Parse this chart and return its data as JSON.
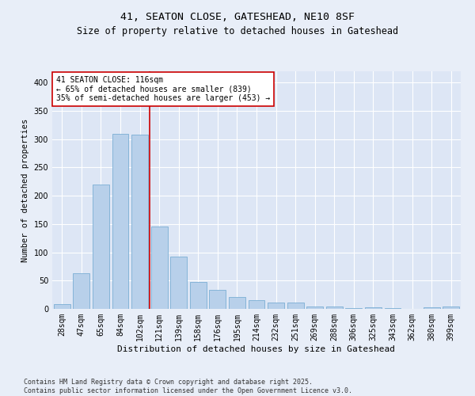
{
  "title1": "41, SEATON CLOSE, GATESHEAD, NE10 8SF",
  "title2": "Size of property relative to detached houses in Gateshead",
  "xlabel": "Distribution of detached houses by size in Gateshead",
  "ylabel": "Number of detached properties",
  "categories": [
    "28sqm",
    "47sqm",
    "65sqm",
    "84sqm",
    "102sqm",
    "121sqm",
    "139sqm",
    "158sqm",
    "176sqm",
    "195sqm",
    "214sqm",
    "232sqm",
    "251sqm",
    "269sqm",
    "288sqm",
    "306sqm",
    "325sqm",
    "343sqm",
    "362sqm",
    "380sqm",
    "399sqm"
  ],
  "values": [
    8,
    63,
    220,
    310,
    308,
    145,
    93,
    47,
    33,
    21,
    15,
    11,
    11,
    4,
    4,
    1,
    3,
    1,
    0,
    3,
    4
  ],
  "bar_color": "#b8d0ea",
  "bar_edge_color": "#7aaed4",
  "vline_x_index": 5,
  "vline_color": "#cc0000",
  "annotation_text": "41 SEATON CLOSE: 116sqm\n← 65% of detached houses are smaller (839)\n35% of semi-detached houses are larger (453) →",
  "annotation_box_color": "#ffffff",
  "annotation_box_edge": "#cc0000",
  "ylim": [
    0,
    420
  ],
  "yticks": [
    0,
    50,
    100,
    150,
    200,
    250,
    300,
    350,
    400
  ],
  "background_color": "#e8eef8",
  "plot_bg_color": "#dde6f5",
  "grid_color": "#ffffff",
  "footer": "Contains HM Land Registry data © Crown copyright and database right 2025.\nContains public sector information licensed under the Open Government Licence v3.0.",
  "title1_fontsize": 9.5,
  "title2_fontsize": 8.5,
  "xlabel_fontsize": 8,
  "ylabel_fontsize": 7.5,
  "tick_fontsize": 7,
  "annotation_fontsize": 7,
  "footer_fontsize": 6
}
